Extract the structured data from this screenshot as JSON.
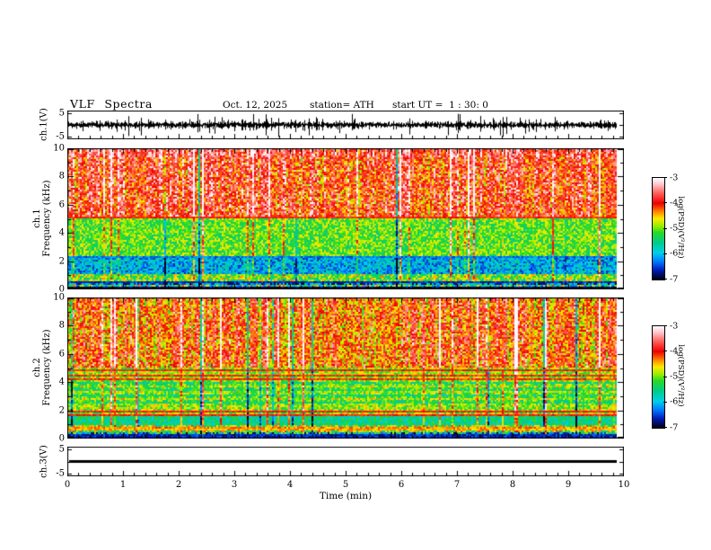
{
  "header": {
    "title": "VLF Spectra",
    "date": "Oct. 12, 2025",
    "station": "station= ATH",
    "start_ut": "start UT =  1 : 30: 0"
  },
  "time_axis": {
    "label": "Time (min)",
    "ticks": [
      "0",
      "1",
      "2",
      "3",
      "4",
      "5",
      "6",
      "7",
      "8",
      "9",
      "10"
    ],
    "range": [
      0,
      10
    ],
    "minor_step_min": 0.2,
    "data_end_min": 9.87
  },
  "panels": {
    "waveform": {
      "ylabel": "ch.1(V)",
      "yticks": [
        "5",
        "-5"
      ],
      "ytick_values": [
        5,
        -5
      ],
      "yrange": [
        -6,
        6
      ]
    },
    "spec1": {
      "ylabel_ch": "ch.1",
      "ylabel_freq": "Frequency (kHz)",
      "yticks": [
        "10",
        "8",
        "6",
        "4",
        "2",
        "0"
      ]
    },
    "spec2": {
      "ylabel_ch": "ch.2",
      "ylabel_freq": "Frequency (kHz)",
      "yticks": [
        "10",
        "8",
        "6",
        "4",
        "2",
        "0"
      ]
    },
    "ch3": {
      "ylabel": "ch.3(V)",
      "yticks": [
        "5",
        "-5"
      ],
      "ytick_values": [
        5,
        -5
      ],
      "yrange": [
        -6,
        6
      ]
    }
  },
  "colorbar": {
    "label": "log(PSD)(V²/Hz)",
    "ticks": [
      "-3",
      "-4",
      "-5",
      "-6",
      "-7"
    ],
    "stops": [
      {
        "v": -3.0,
        "c": "#ffffff"
      },
      {
        "v": -3.25,
        "c": "#ffc4cc"
      },
      {
        "v": -3.6,
        "c": "#ff6058"
      },
      {
        "v": -4.0,
        "c": "#ee0000"
      },
      {
        "v": -4.35,
        "c": "#ff8c00"
      },
      {
        "v": -4.6,
        "c": "#ffe800"
      },
      {
        "v": -4.9,
        "c": "#96ee00"
      },
      {
        "v": -5.15,
        "c": "#28d828"
      },
      {
        "v": -5.55,
        "c": "#00cc88"
      },
      {
        "v": -5.95,
        "c": "#00d0e8"
      },
      {
        "v": -6.3,
        "c": "#0078ff"
      },
      {
        "v": -6.65,
        "c": "#0018b0"
      },
      {
        "v": -7.0,
        "c": "#000014"
      }
    ]
  },
  "chart_data": [
    {
      "type": "line",
      "title": "ch.1 raw signal (V)",
      "xlabel": "Time (min)",
      "xlim": [
        0,
        10
      ],
      "ylim": [
        -6,
        6
      ],
      "description": "Dense broadband noise centred on 0 V with continuous impulsive spikes reaching about ±5 V over 0–9.87 min",
      "spike_prob": 0.035,
      "base_amp_V": 1.1,
      "spike_amp_V": 5.0
    },
    {
      "type": "heatmap",
      "title": "ch.1 spectrogram",
      "xlabel": "Time (min)",
      "ylabel": "Frequency (kHz)",
      "xlim": [
        0,
        10
      ],
      "ylim": [
        0,
        10
      ],
      "zlim_log_psd": [
        -7,
        -3
      ],
      "sferic_prob": 0.1,
      "sferic_min": 0.5,
      "sferic_max": 1.8,
      "dark_col_prob": 0.03,
      "bands": [
        {
          "fmin": 9.3,
          "fmax": 10.01,
          "level": -3.7,
          "noise": 0.5,
          "desc": "intense red band at top edge"
        },
        {
          "fmin": 5.05,
          "fmax": 9.3,
          "level": -3.95,
          "noise": 0.65,
          "desc": "red/orange with yellow vertical streaks"
        },
        {
          "fmin": 2.25,
          "fmax": 5.05,
          "level": -5.05,
          "noise": 0.5,
          "desc": "green mid band cut by red sferic streaks"
        },
        {
          "fmin": 1.05,
          "fmax": 2.25,
          "level": -6.05,
          "noise": 0.55,
          "desc": "quiet blue/cyan band"
        },
        {
          "fmin": 0.6,
          "fmax": 1.05,
          "level": -5.0,
          "noise": 0.7,
          "desc": "green-yellow speckle"
        },
        {
          "fmin": 0.38,
          "fmax": 0.6,
          "level": -6.3,
          "noise": 0.7,
          "desc": "dark narrow band"
        },
        {
          "fmin": 0.0,
          "fmax": 0.38,
          "level": -5.3,
          "noise": 1.1,
          "desc": "mixed dark speckle near 0 kHz"
        }
      ],
      "lines": [
        {
          "f": 5.15,
          "level": -4.0,
          "w": 0.12
        },
        {
          "f": 2.3,
          "level": -6.3,
          "w": 0.1
        },
        {
          "f": 0.5,
          "level": -6.6,
          "w": 0.1
        },
        {
          "f": 0.15,
          "level": -6.9,
          "w": 0.16
        }
      ]
    },
    {
      "type": "heatmap",
      "title": "ch.2 spectrogram",
      "xlabel": "Time (min)",
      "ylabel": "Frequency (kHz)",
      "xlim": [
        0,
        10
      ],
      "ylim": [
        0,
        10
      ],
      "zlim_log_psd": [
        -7,
        -3
      ],
      "sferic_prob": 0.1,
      "sferic_min": 0.5,
      "sferic_max": 1.6,
      "dark_col_prob": 0.03,
      "row_banding": {
        "fmin": 2.2,
        "fmax": 4.0,
        "amp": 0.3,
        "period": 0.45
      },
      "bands": [
        {
          "fmin": 5.0,
          "fmax": 10.01,
          "level": -4.15,
          "noise": 0.65,
          "desc": "red-yellow mottled upper half"
        },
        {
          "fmin": 4.0,
          "fmax": 5.0,
          "level": -4.9,
          "noise": 0.5,
          "desc": "green band crossed by red lines"
        },
        {
          "fmin": 2.2,
          "fmax": 4.0,
          "level": -5.1,
          "noise": 0.5,
          "desc": "green/cyan horizontally banded region"
        },
        {
          "fmin": 1.55,
          "fmax": 2.2,
          "level": -4.9,
          "noise": 0.55,
          "desc": "green with strong red horizontal lines"
        },
        {
          "fmin": 1.0,
          "fmax": 1.55,
          "level": -5.55,
          "noise": 0.45,
          "desc": "cyan band"
        },
        {
          "fmin": 0.45,
          "fmax": 1.0,
          "level": -4.9,
          "noise": 0.8,
          "desc": "yellow/green speckle rows"
        },
        {
          "fmin": 0.0,
          "fmax": 0.45,
          "level": -5.9,
          "noise": 1.1,
          "desc": "dark speckle near 0 kHz"
        }
      ],
      "lines": [
        {
          "f": 4.85,
          "level": -4.0,
          "w": 0.1
        },
        {
          "f": 4.5,
          "level": -4.05,
          "w": 0.1
        },
        {
          "f": 4.2,
          "level": -4.1,
          "w": 0.1
        },
        {
          "f": 1.95,
          "level": -3.95,
          "w": 0.12
        },
        {
          "f": 1.7,
          "level": -4.0,
          "w": 0.12
        },
        {
          "f": 0.8,
          "level": -4.35,
          "w": 0.1
        },
        {
          "f": 0.6,
          "level": -4.45,
          "w": 0.1
        },
        {
          "f": 0.2,
          "level": -6.6,
          "w": 0.15
        }
      ]
    },
    {
      "type": "line",
      "title": "ch.3 raw signal (V)",
      "xlabel": "Time (min)",
      "xlim": [
        0,
        10
      ],
      "ylim": [
        -6,
        6
      ],
      "description": "Constant heavy trace at 0 V over 0–9.87 min",
      "value_V": 0
    }
  ]
}
